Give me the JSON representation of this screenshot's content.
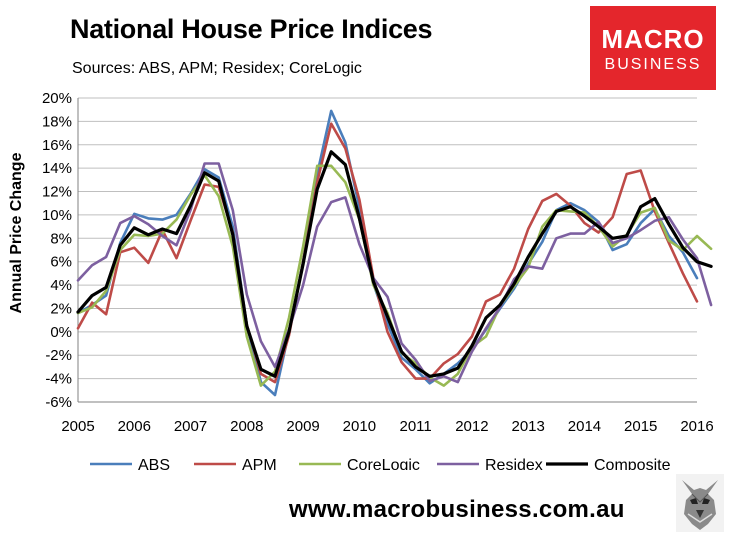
{
  "header": {
    "title": "National House Price Indices",
    "subtitle": "Sources: ABS, APM; Residex; CoreLogic"
  },
  "logo": {
    "line1": "MACRO",
    "line2": "BUSINESS",
    "color": "#e4262c"
  },
  "footer": {
    "url": "www.macrobusiness.com.au"
  },
  "chart_data": {
    "type": "line",
    "title": "National House Price Indices",
    "ylabel": "Annual Price Change",
    "xlabel": "",
    "ylim": [
      -6,
      20
    ],
    "yticks": [
      -6,
      -4,
      -2,
      0,
      2,
      4,
      6,
      8,
      10,
      12,
      14,
      16,
      18,
      20
    ],
    "ytick_labels": [
      "-6%",
      "-4%",
      "-2%",
      "0%",
      "2%",
      "4%",
      "6%",
      "8%",
      "10%",
      "12%",
      "14%",
      "16%",
      "18%",
      "20%"
    ],
    "xlim": [
      2005,
      2016
    ],
    "xticks": [
      2005,
      2006,
      2007,
      2008,
      2009,
      2010,
      2011,
      2012,
      2013,
      2014,
      2015,
      2016
    ],
    "xtick_labels": [
      "2005",
      "2006",
      "2007",
      "2008",
      "2009",
      "2010",
      "2011",
      "2012",
      "2013",
      "2014",
      "2015",
      "2016"
    ],
    "grid": "horizontal",
    "legend": "bottom",
    "series": [
      {
        "name": "ABS",
        "color": "#4a7ebb",
        "points": [
          [
            2005.0,
            1.6
          ],
          [
            2005.25,
            2.3
          ],
          [
            2005.5,
            3.1
          ],
          [
            2005.75,
            7.6
          ],
          [
            2006.0,
            10.1
          ],
          [
            2006.25,
            9.7
          ],
          [
            2006.5,
            9.6
          ],
          [
            2006.75,
            10.0
          ],
          [
            2007.0,
            11.8
          ],
          [
            2007.25,
            13.9
          ],
          [
            2007.5,
            13.2
          ],
          [
            2007.75,
            9.0
          ],
          [
            2008.0,
            0.6
          ],
          [
            2008.25,
            -4.3
          ],
          [
            2008.5,
            -5.4
          ],
          [
            2008.75,
            0.0
          ],
          [
            2009.0,
            6.0
          ],
          [
            2009.25,
            13.5
          ],
          [
            2009.5,
            18.9
          ],
          [
            2009.75,
            16.2
          ],
          [
            2010.0,
            10.6
          ],
          [
            2010.25,
            4.1
          ],
          [
            2010.5,
            0.7
          ],
          [
            2010.75,
            -2.2
          ],
          [
            2011.0,
            -3.2
          ],
          [
            2011.25,
            -4.4
          ],
          [
            2011.5,
            -3.6
          ],
          [
            2011.75,
            -2.7
          ],
          [
            2012.0,
            -1.5
          ],
          [
            2012.25,
            0.2
          ],
          [
            2012.5,
            2.0
          ],
          [
            2012.75,
            3.7
          ],
          [
            2013.0,
            5.8
          ],
          [
            2013.25,
            7.7
          ],
          [
            2013.5,
            10.4
          ],
          [
            2013.75,
            11.0
          ],
          [
            2014.0,
            10.4
          ],
          [
            2014.25,
            9.4
          ],
          [
            2014.5,
            7.0
          ],
          [
            2014.75,
            7.5
          ],
          [
            2015.0,
            9.3
          ],
          [
            2015.25,
            10.5
          ],
          [
            2015.5,
            8.2
          ],
          [
            2015.75,
            6.8
          ],
          [
            2016.0,
            4.6
          ]
        ]
      },
      {
        "name": "APM",
        "color": "#be4b48",
        "points": [
          [
            2005.0,
            0.3
          ],
          [
            2005.25,
            2.5
          ],
          [
            2005.5,
            1.5
          ],
          [
            2005.75,
            6.8
          ],
          [
            2006.0,
            7.2
          ],
          [
            2006.25,
            5.9
          ],
          [
            2006.5,
            8.7
          ],
          [
            2006.75,
            6.3
          ],
          [
            2007.0,
            9.5
          ],
          [
            2007.25,
            12.6
          ],
          [
            2007.5,
            12.4
          ],
          [
            2007.75,
            8.5
          ],
          [
            2008.0,
            0.6
          ],
          [
            2008.25,
            -3.6
          ],
          [
            2008.5,
            -4.3
          ],
          [
            2008.75,
            -0.3
          ],
          [
            2009.0,
            6.0
          ],
          [
            2009.25,
            12.8
          ],
          [
            2009.5,
            17.8
          ],
          [
            2009.75,
            15.7
          ],
          [
            2010.0,
            11.3
          ],
          [
            2010.25,
            4.6
          ],
          [
            2010.5,
            0.0
          ],
          [
            2010.75,
            -2.6
          ],
          [
            2011.0,
            -4.0
          ],
          [
            2011.25,
            -4.0
          ],
          [
            2011.5,
            -2.7
          ],
          [
            2011.75,
            -1.9
          ],
          [
            2012.0,
            -0.4
          ],
          [
            2012.25,
            2.6
          ],
          [
            2012.5,
            3.2
          ],
          [
            2012.75,
            5.4
          ],
          [
            2013.0,
            8.8
          ],
          [
            2013.25,
            11.2
          ],
          [
            2013.5,
            11.8
          ],
          [
            2013.75,
            10.8
          ],
          [
            2014.0,
            9.3
          ],
          [
            2014.25,
            8.5
          ],
          [
            2014.5,
            9.8
          ],
          [
            2014.75,
            13.5
          ],
          [
            2015.0,
            13.8
          ],
          [
            2015.25,
            10.3
          ],
          [
            2015.5,
            7.6
          ],
          [
            2015.75,
            5.0
          ],
          [
            2016.0,
            2.6
          ]
        ]
      },
      {
        "name": "CoreLogic",
        "color": "#98b954",
        "points": [
          [
            2005.0,
            1.6
          ],
          [
            2005.25,
            2.1
          ],
          [
            2005.5,
            3.5
          ],
          [
            2005.75,
            7.0
          ],
          [
            2006.0,
            8.3
          ],
          [
            2006.25,
            8.2
          ],
          [
            2006.5,
            8.4
          ],
          [
            2006.75,
            9.6
          ],
          [
            2007.0,
            11.7
          ],
          [
            2007.25,
            13.4
          ],
          [
            2007.5,
            11.6
          ],
          [
            2007.75,
            7.3
          ],
          [
            2008.0,
            -0.4
          ],
          [
            2008.25,
            -4.6
          ],
          [
            2008.5,
            -3.4
          ],
          [
            2008.75,
            1.2
          ],
          [
            2009.0,
            7.3
          ],
          [
            2009.25,
            14.2
          ],
          [
            2009.5,
            14.2
          ],
          [
            2009.75,
            12.8
          ],
          [
            2010.0,
            9.6
          ],
          [
            2010.25,
            4.0
          ],
          [
            2010.5,
            1.6
          ],
          [
            2010.75,
            -1.8
          ],
          [
            2011.0,
            -2.7
          ],
          [
            2011.25,
            -3.9
          ],
          [
            2011.5,
            -4.6
          ],
          [
            2011.75,
            -3.6
          ],
          [
            2012.0,
            -1.3
          ],
          [
            2012.25,
            -0.4
          ],
          [
            2012.5,
            2.2
          ],
          [
            2012.75,
            3.9
          ],
          [
            2013.0,
            5.5
          ],
          [
            2013.25,
            9.0
          ],
          [
            2013.5,
            10.4
          ],
          [
            2013.75,
            10.3
          ],
          [
            2014.0,
            10.2
          ],
          [
            2014.25,
            9.0
          ],
          [
            2014.5,
            7.3
          ],
          [
            2014.75,
            8.3
          ],
          [
            2015.0,
            10.2
          ],
          [
            2015.25,
            10.6
          ],
          [
            2015.5,
            7.8
          ],
          [
            2015.75,
            7.0
          ],
          [
            2016.0,
            8.2
          ],
          [
            2016.25,
            7.1
          ]
        ]
      },
      {
        "name": "Residex",
        "color": "#7d60a0",
        "points": [
          [
            2005.0,
            4.4
          ],
          [
            2005.25,
            5.7
          ],
          [
            2005.5,
            6.4
          ],
          [
            2005.75,
            9.3
          ],
          [
            2006.0,
            9.9
          ],
          [
            2006.25,
            9.2
          ],
          [
            2006.5,
            8.2
          ],
          [
            2006.75,
            7.4
          ],
          [
            2007.0,
            10.4
          ],
          [
            2007.25,
            14.4
          ],
          [
            2007.5,
            14.4
          ],
          [
            2007.75,
            10.4
          ],
          [
            2008.0,
            3.2
          ],
          [
            2008.25,
            -0.8
          ],
          [
            2008.5,
            -3.0
          ],
          [
            2008.75,
            0.2
          ],
          [
            2009.0,
            4.0
          ],
          [
            2009.25,
            9.0
          ],
          [
            2009.5,
            11.1
          ],
          [
            2009.75,
            11.5
          ],
          [
            2010.0,
            7.5
          ],
          [
            2010.25,
            4.6
          ],
          [
            2010.5,
            3.0
          ],
          [
            2010.75,
            -1.0
          ],
          [
            2011.0,
            -2.4
          ],
          [
            2011.25,
            -4.2
          ],
          [
            2011.5,
            -3.8
          ],
          [
            2011.75,
            -4.3
          ],
          [
            2012.0,
            -1.7
          ],
          [
            2012.25,
            0.3
          ],
          [
            2012.5,
            2.1
          ],
          [
            2012.75,
            4.5
          ],
          [
            2013.0,
            5.6
          ],
          [
            2013.25,
            5.4
          ],
          [
            2013.5,
            8.0
          ],
          [
            2013.75,
            8.4
          ],
          [
            2014.0,
            8.4
          ],
          [
            2014.25,
            9.4
          ],
          [
            2014.5,
            7.6
          ],
          [
            2014.75,
            8.0
          ],
          [
            2015.0,
            8.7
          ],
          [
            2015.25,
            9.5
          ],
          [
            2015.5,
            9.8
          ],
          [
            2015.75,
            7.9
          ],
          [
            2016.0,
            6.3
          ],
          [
            2016.25,
            2.3
          ]
        ]
      },
      {
        "name": "Composite",
        "color": "#000000",
        "points": [
          [
            2005.0,
            1.7
          ],
          [
            2005.25,
            3.1
          ],
          [
            2005.5,
            3.8
          ],
          [
            2005.75,
            7.4
          ],
          [
            2006.0,
            8.9
          ],
          [
            2006.25,
            8.3
          ],
          [
            2006.5,
            8.8
          ],
          [
            2006.75,
            8.4
          ],
          [
            2007.0,
            10.8
          ],
          [
            2007.25,
            13.6
          ],
          [
            2007.5,
            12.9
          ],
          [
            2007.75,
            8.3
          ],
          [
            2008.0,
            0.5
          ],
          [
            2008.25,
            -3.2
          ],
          [
            2008.5,
            -3.8
          ],
          [
            2008.75,
            0.0
          ],
          [
            2009.0,
            5.8
          ],
          [
            2009.25,
            12.2
          ],
          [
            2009.5,
            15.4
          ],
          [
            2009.75,
            14.3
          ],
          [
            2010.0,
            9.7
          ],
          [
            2010.25,
            4.3
          ],
          [
            2010.5,
            1.3
          ],
          [
            2010.75,
            -1.7
          ],
          [
            2011.0,
            -3.0
          ],
          [
            2011.25,
            -3.8
          ],
          [
            2011.5,
            -3.6
          ],
          [
            2011.75,
            -3.1
          ],
          [
            2012.0,
            -1.2
          ],
          [
            2012.25,
            1.2
          ],
          [
            2012.5,
            2.3
          ],
          [
            2012.75,
            4.1
          ],
          [
            2013.0,
            6.4
          ],
          [
            2013.25,
            8.4
          ],
          [
            2013.5,
            10.3
          ],
          [
            2013.75,
            10.7
          ],
          [
            2014.0,
            9.9
          ],
          [
            2014.25,
            9.0
          ],
          [
            2014.5,
            8.0
          ],
          [
            2014.75,
            8.2
          ],
          [
            2015.0,
            10.7
          ],
          [
            2015.25,
            11.4
          ],
          [
            2015.5,
            9.2
          ],
          [
            2015.75,
            7.2
          ],
          [
            2016.0,
            6.0
          ],
          [
            2016.25,
            5.6
          ]
        ]
      }
    ]
  }
}
